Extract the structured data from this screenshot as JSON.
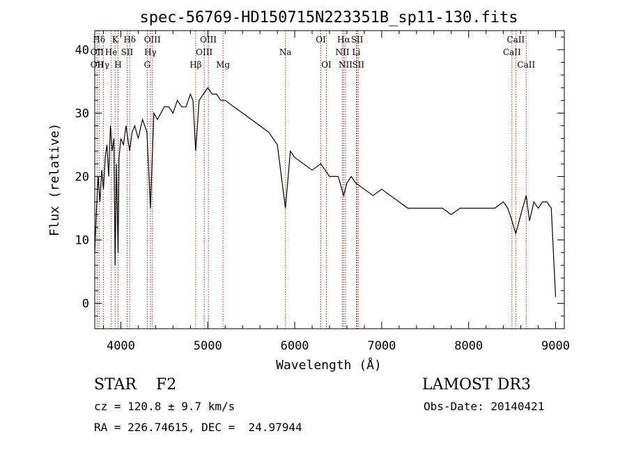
{
  "title": "spec-56769-HD150715N223351B_sp11-130.fits",
  "classification": "STAR    F2",
  "survey": "LAMOST DR3",
  "cz_text": "cz = 120.8 ± 9.7 km/s",
  "obs_date_text": "Obs-Date: 20140421",
  "radec_text": "RA = 226.74615, DEC =  24.97944",
  "colors": {
    "spectrum": "#000000",
    "line_marker": "#b22222",
    "axes": "#000000"
  },
  "chart_data": {
    "type": "line",
    "xlabel": "Wavelength (Å)",
    "ylabel": "Flux (relative)",
    "xlim": [
      3700,
      9100
    ],
    "ylim": [
      -4,
      43
    ],
    "xticks": [
      4000,
      5000,
      6000,
      7000,
      8000,
      9000
    ],
    "yticks": [
      0,
      10,
      20,
      30,
      40
    ],
    "grid": false,
    "legend": "none",
    "line_markers": [
      {
        "label": "Hδ",
        "x": 3750,
        "row": 0
      },
      {
        "label": "K",
        "x": 3934,
        "row": 0
      },
      {
        "label": "Hδ",
        "x": 4102,
        "row": 0
      },
      {
        "label": "OIII",
        "x": 4363,
        "row": 0
      },
      {
        "label": "OIII",
        "x": 5007,
        "row": 0
      },
      {
        "label": "OI",
        "x": 6300,
        "row": 0
      },
      {
        "label": "Hα",
        "x": 6563,
        "row": 0
      },
      {
        "label": "SII",
        "x": 6717,
        "row": 0
      },
      {
        "label": "CaII",
        "x": 8542,
        "row": 0
      },
      {
        "label": "OII",
        "x": 3727,
        "row": 1
      },
      {
        "label": "He",
        "x": 3889,
        "row": 1
      },
      {
        "label": "SII",
        "x": 4072,
        "row": 1
      },
      {
        "label": "Hγ",
        "x": 4340,
        "row": 1
      },
      {
        "label": "OIII",
        "x": 4959,
        "row": 1
      },
      {
        "label": "Na",
        "x": 5893,
        "row": 1
      },
      {
        "label": "NII",
        "x": 6548,
        "row": 1
      },
      {
        "label": "Li",
        "x": 6708,
        "row": 1
      },
      {
        "label": "CaII",
        "x": 8498,
        "row": 1
      },
      {
        "label": "OII",
        "x": 3727,
        "row": 2
      },
      {
        "label": "Hγ",
        "x": 3798,
        "row": 2
      },
      {
        "label": "H",
        "x": 3968,
        "row": 2
      },
      {
        "label": "G",
        "x": 4304,
        "row": 2
      },
      {
        "label": "Hβ",
        "x": 4861,
        "row": 2
      },
      {
        "label": "Mg",
        "x": 5175,
        "row": 2
      },
      {
        "label": "OI",
        "x": 6364,
        "row": 2
      },
      {
        "label": "NII",
        "x": 6584,
        "row": 2
      },
      {
        "label": "SII",
        "x": 6731,
        "row": 2
      },
      {
        "label": "CaII",
        "x": 8662,
        "row": 2
      }
    ],
    "series": [
      {
        "x": [
          3700,
          3720,
          3740,
          3760,
          3780,
          3800,
          3820,
          3840,
          3860,
          3880,
          3900,
          3920,
          3934,
          3950,
          3968,
          3980,
          4000,
          4030,
          4060,
          4101,
          4130,
          4160,
          4200,
          4250,
          4300,
          4340,
          4380,
          4420,
          4460,
          4500,
          4550,
          4600,
          4650,
          4700,
          4750,
          4800,
          4830,
          4861,
          4900,
          4950,
          5000,
          5050,
          5100,
          5150,
          5200,
          5300,
          5400,
          5500,
          5600,
          5700,
          5800,
          5893,
          5950,
          6000,
          6100,
          6200,
          6300,
          6400,
          6500,
          6563,
          6600,
          6650,
          6700,
          6800,
          6900,
          7000,
          7100,
          7200,
          7300,
          7400,
          7500,
          7600,
          7700,
          7800,
          7900,
          8000,
          8100,
          8200,
          8300,
          8400,
          8450,
          8498,
          8542,
          8600,
          8662,
          8700,
          8750,
          8800,
          8850,
          8900,
          8950,
          9000
        ],
        "y": [
          8,
          15,
          20,
          16,
          21,
          18,
          23,
          25,
          20,
          28,
          24,
          26,
          6,
          22,
          8,
          23,
          26,
          25,
          28,
          24,
          27,
          28,
          26,
          29,
          27,
          15,
          30,
          29,
          30,
          31,
          31,
          30,
          32,
          31,
          31,
          33,
          32,
          24,
          32,
          33,
          34,
          33,
          33,
          32,
          32,
          31,
          30,
          29,
          28,
          27,
          25,
          15,
          24,
          23,
          22,
          21,
          22,
          20,
          20,
          17,
          19,
          20,
          19,
          18,
          17,
          18,
          17,
          16,
          15,
          15,
          15,
          15,
          15,
          14,
          15,
          15,
          15,
          15,
          15,
          16,
          15,
          13,
          11,
          14,
          17,
          13,
          16,
          15,
          16,
          16,
          15,
          1
        ]
      }
    ]
  }
}
